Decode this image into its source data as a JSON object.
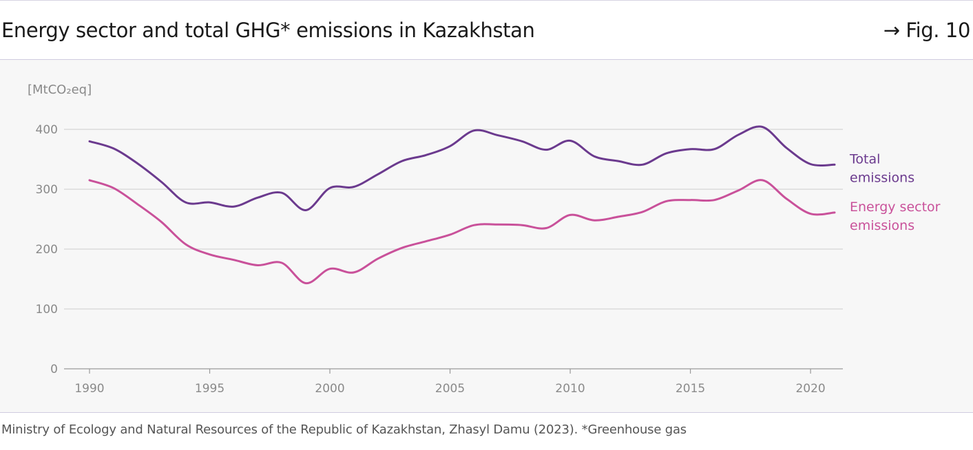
{
  "header": {
    "title": "Energy sector and total GHG* emissions in Kazakhstan",
    "fig_label": "→ Fig. 10"
  },
  "source": "Ministry of Ecology and Natural Resources of the Republic of Kazakhstan, Zhasyl Damu (2023). *Greenhouse gas",
  "chart_data": {
    "type": "line",
    "ylabel": "[MtCO₂eq]",
    "ylim": [
      0,
      400
    ],
    "yticks": [
      "0",
      "100",
      "200",
      "300",
      "400"
    ],
    "xlim": [
      1990,
      2021
    ],
    "xticks": [
      "1990",
      "1995",
      "2000",
      "2005",
      "2010",
      "2015",
      "2020"
    ],
    "grid": true,
    "x": [
      1990,
      1991,
      1992,
      1993,
      1994,
      1995,
      1996,
      1997,
      1998,
      1999,
      2000,
      2001,
      2002,
      2003,
      2004,
      2005,
      2006,
      2007,
      2008,
      2009,
      2010,
      2011,
      2012,
      2013,
      2014,
      2015,
      2016,
      2017,
      2018,
      2019,
      2020,
      2021
    ],
    "series": [
      {
        "name": "Total emissions",
        "label_lines": [
          "Total",
          "emissions"
        ],
        "color": "#6b3a8e",
        "values": [
          380,
          368,
          343,
          312,
          278,
          278,
          271,
          286,
          294,
          265,
          302,
          304,
          325,
          347,
          357,
          372,
          398,
          390,
          380,
          366,
          381,
          355,
          347,
          341,
          360,
          367,
          367,
          391,
          404,
          369,
          342,
          341
        ]
      },
      {
        "name": "Energy sector emissions",
        "label_lines": [
          "Energy sector",
          "emissions"
        ],
        "color": "#c9519a",
        "values": [
          315,
          302,
          275,
          245,
          208,
          191,
          182,
          173,
          177,
          143,
          167,
          161,
          184,
          202,
          213,
          224,
          240,
          241,
          240,
          235,
          257,
          248,
          254,
          262,
          280,
          282,
          282,
          298,
          315,
          284,
          259,
          261
        ]
      }
    ]
  }
}
